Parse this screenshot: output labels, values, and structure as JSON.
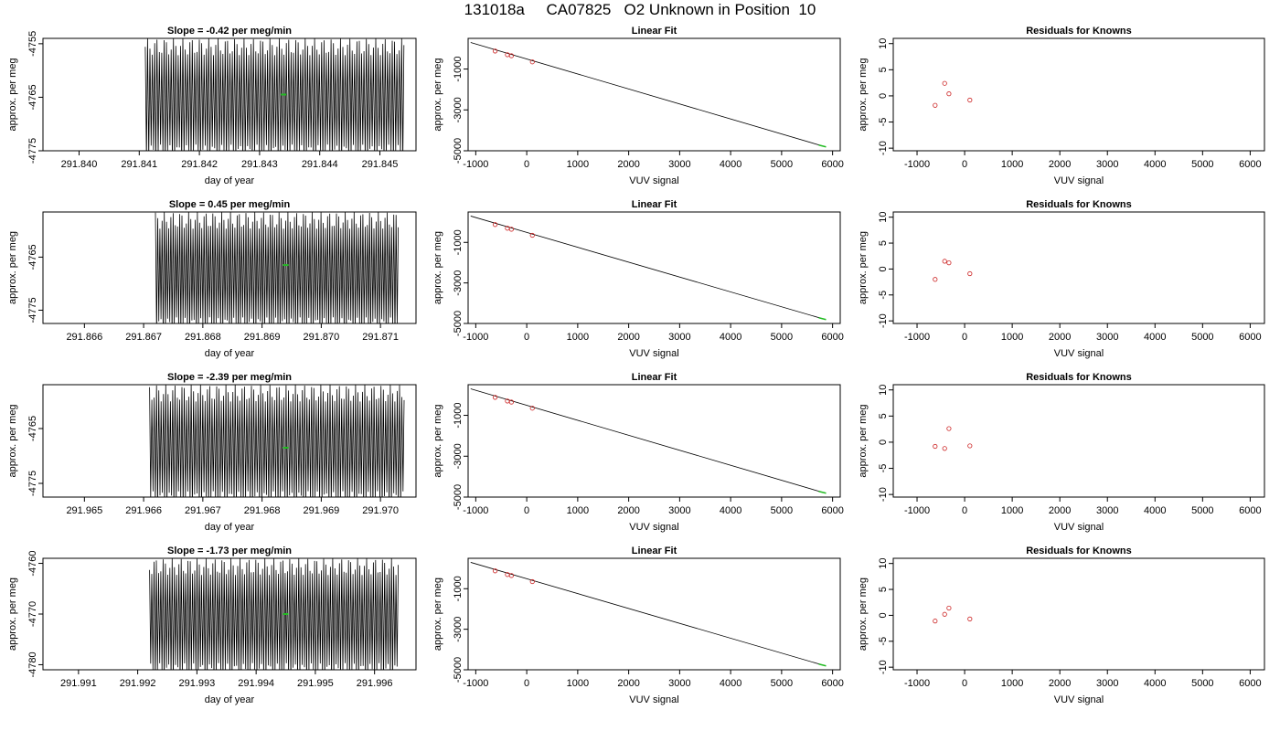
{
  "figure": {
    "title": "131018a     CA07825   O2 Unknown in Position  10"
  },
  "colors": {
    "axis": "#000000",
    "series": "#000000",
    "known_points": "#cc2222",
    "unknown": "#22bb22"
  },
  "chart_data": [
    {
      "type": "line",
      "row": 1,
      "title": "Slope =  -0.42  per meg/min",
      "xlabel": "day of year",
      "ylabel": "approx. per meg",
      "xlim": [
        291.8394,
        291.8456
      ],
      "ylim": [
        -4775,
        -4754
      ],
      "xticks": [
        291.84,
        291.841,
        291.842,
        291.843,
        291.844,
        291.845
      ],
      "xtick_labels": [
        "291.840",
        "291.841",
        "291.842",
        "291.843",
        "291.844",
        "291.845"
      ],
      "yticks": [
        -4775,
        -4765,
        -4755
      ],
      "ytick_labels": [
        "-4775",
        "-4765",
        "-4755"
      ],
      "trace": {
        "x_start": 291.8411,
        "x_end": 291.8454,
        "y_min": -4775,
        "y_max": -4754,
        "oscillations": 110
      },
      "unknown_point": {
        "x": 291.8434,
        "y": -4764.5
      }
    },
    {
      "type": "scatter",
      "row": 1,
      "title": "Linear Fit",
      "xlabel": "VUV signal",
      "ylabel": "approx. per meg",
      "xlim": [
        -1150,
        6150
      ],
      "ylim": [
        -5000,
        500
      ],
      "xticks": [
        -1000,
        0,
        1000,
        2000,
        3000,
        4000,
        5000,
        6000
      ],
      "xtick_labels": [
        "-1000",
        "0",
        "1000",
        "2000",
        "3000",
        "4000",
        "5000",
        "6000"
      ],
      "yticks": [
        -5000,
        -3000,
        -1000
      ],
      "ytick_labels": [
        "-5000",
        "-3000",
        "-1000"
      ],
      "fit_line": {
        "x": [
          -1100,
          5800
        ],
        "y": [
          300,
          -4765
        ]
      },
      "knowns": [
        {
          "x": -620,
          "y": -120
        },
        {
          "x": -380,
          "y": -300
        },
        {
          "x": -300,
          "y": -350
        },
        {
          "x": 110,
          "y": -650
        }
      ],
      "unknown_point": {
        "x": 5800,
        "y": -4765
      }
    },
    {
      "type": "scatter",
      "row": 1,
      "title": "Residuals for Knowns",
      "xlabel": "VUV signal",
      "ylabel": "approx. per meg",
      "xlim": [
        -1500,
        6300
      ],
      "ylim": [
        -10.5,
        11
      ],
      "xticks": [
        -1000,
        0,
        1000,
        2000,
        3000,
        4000,
        5000,
        6000
      ],
      "xtick_labels": [
        "-1000",
        "0",
        "1000",
        "2000",
        "3000",
        "4000",
        "5000",
        "6000"
      ],
      "yticks": [
        -10,
        -5,
        0,
        5,
        10
      ],
      "ytick_labels": [
        "-10",
        "-5",
        "0",
        "5",
        "10"
      ],
      "points": [
        {
          "x": -620,
          "y": -1.8
        },
        {
          "x": -420,
          "y": 2.4
        },
        {
          "x": -330,
          "y": 0.4
        },
        {
          "x": 110,
          "y": -0.8
        }
      ]
    },
    {
      "type": "line",
      "row": 2,
      "title": "Slope =  0.45  per meg/min",
      "xlabel": "day of year",
      "ylabel": "approx. per meg",
      "xlim": [
        291.8653,
        291.8716
      ],
      "ylim": [
        -4777.5,
        -4756.5
      ],
      "xticks": [
        291.866,
        291.867,
        291.868,
        291.869,
        291.87,
        291.871
      ],
      "xtick_labels": [
        "291.866",
        "291.867",
        "291.868",
        "291.869",
        "291.870",
        "291.871"
      ],
      "yticks": [
        -4775,
        -4765
      ],
      "ytick_labels": [
        "-4775",
        "-4765"
      ],
      "trace": {
        "x_start": 291.8672,
        "x_end": 291.8713,
        "y_min": -4777.5,
        "y_max": -4756.5,
        "oscillations": 110
      },
      "unknown_point": {
        "x": 291.8694,
        "y": -4766.5
      }
    },
    {
      "type": "scatter",
      "row": 2,
      "title": "Linear Fit",
      "xlabel": "VUV signal",
      "ylabel": "approx. per meg",
      "xlim": [
        -1150,
        6150
      ],
      "ylim": [
        -5000,
        500
      ],
      "xticks": [
        -1000,
        0,
        1000,
        2000,
        3000,
        4000,
        5000,
        6000
      ],
      "xtick_labels": [
        "-1000",
        "0",
        "1000",
        "2000",
        "3000",
        "4000",
        "5000",
        "6000"
      ],
      "yticks": [
        -5000,
        -3000,
        -1000
      ],
      "ytick_labels": [
        "-5000",
        "-3000",
        "-1000"
      ],
      "fit_line": {
        "x": [
          -1100,
          5800
        ],
        "y": [
          300,
          -4765
        ]
      },
      "knowns": [
        {
          "x": -620,
          "y": -120
        },
        {
          "x": -380,
          "y": -300
        },
        {
          "x": -300,
          "y": -350
        },
        {
          "x": 110,
          "y": -650
        }
      ],
      "unknown_point": {
        "x": 5800,
        "y": -4765
      }
    },
    {
      "type": "scatter",
      "row": 2,
      "title": "Residuals for Knowns",
      "xlabel": "VUV signal",
      "ylabel": "approx. per meg",
      "xlim": [
        -1500,
        6300
      ],
      "ylim": [
        -10.5,
        11
      ],
      "xticks": [
        -1000,
        0,
        1000,
        2000,
        3000,
        4000,
        5000,
        6000
      ],
      "xtick_labels": [
        "-1000",
        "0",
        "1000",
        "2000",
        "3000",
        "4000",
        "5000",
        "6000"
      ],
      "yticks": [
        -10,
        -5,
        0,
        5,
        10
      ],
      "ytick_labels": [
        "-10",
        "-5",
        "0",
        "5",
        "10"
      ],
      "points": [
        {
          "x": -620,
          "y": -2.0
        },
        {
          "x": -420,
          "y": 1.5
        },
        {
          "x": -330,
          "y": 1.2
        },
        {
          "x": 110,
          "y": -0.9
        }
      ]
    },
    {
      "type": "line",
      "row": 3,
      "title": "Slope =  -2.39  per meg/min",
      "xlabel": "day of year",
      "ylabel": "approx. per meg",
      "xlim": [
        291.9643,
        291.9706
      ],
      "ylim": [
        -4777.5,
        -4757
      ],
      "xticks": [
        291.965,
        291.966,
        291.967,
        291.968,
        291.969,
        291.97
      ],
      "xtick_labels": [
        "291.965",
        "291.966",
        "291.967",
        "291.968",
        "291.969",
        "291.970"
      ],
      "yticks": [
        -4775,
        -4765
      ],
      "ytick_labels": [
        "-4775",
        "-4765"
      ],
      "trace": {
        "x_start": 291.9661,
        "x_end": 291.9704,
        "y_min": -4777.5,
        "y_max": -4757,
        "oscillations": 110
      },
      "unknown_point": {
        "x": 291.9684,
        "y": -4768.5
      }
    },
    {
      "type": "scatter",
      "row": 3,
      "title": "Linear Fit",
      "xlabel": "VUV signal",
      "ylabel": "approx. per meg",
      "xlim": [
        -1150,
        6150
      ],
      "ylim": [
        -5000,
        500
      ],
      "xticks": [
        -1000,
        0,
        1000,
        2000,
        3000,
        4000,
        5000,
        6000
      ],
      "xtick_labels": [
        "-1000",
        "0",
        "1000",
        "2000",
        "3000",
        "4000",
        "5000",
        "6000"
      ],
      "yticks": [
        -5000,
        -3000,
        -1000
      ],
      "ytick_labels": [
        "-5000",
        "-3000",
        "-1000"
      ],
      "fit_line": {
        "x": [
          -1100,
          5800
        ],
        "y": [
          300,
          -4765
        ]
      },
      "knowns": [
        {
          "x": -620,
          "y": -120
        },
        {
          "x": -380,
          "y": -300
        },
        {
          "x": -300,
          "y": -350
        },
        {
          "x": 110,
          "y": -650
        }
      ],
      "unknown_point": {
        "x": 5800,
        "y": -4765
      }
    },
    {
      "type": "scatter",
      "row": 3,
      "title": "Residuals for Knowns",
      "xlabel": "VUV signal",
      "ylabel": "approx. per meg",
      "xlim": [
        -1500,
        6300
      ],
      "ylim": [
        -10.5,
        11
      ],
      "xticks": [
        -1000,
        0,
        1000,
        2000,
        3000,
        4000,
        5000,
        6000
      ],
      "xtick_labels": [
        "-1000",
        "0",
        "1000",
        "2000",
        "3000",
        "4000",
        "5000",
        "6000"
      ],
      "yticks": [
        -10,
        -5,
        0,
        5,
        10
      ],
      "ytick_labels": [
        "-10",
        "-5",
        "0",
        "5",
        "10"
      ],
      "points": [
        {
          "x": -620,
          "y": -0.8
        },
        {
          "x": -420,
          "y": -1.2
        },
        {
          "x": -330,
          "y": 2.6
        },
        {
          "x": 110,
          "y": -0.7
        }
      ]
    },
    {
      "type": "line",
      "row": 4,
      "title": "Slope =  -1.73  per meg/min",
      "xlabel": "day of year",
      "ylabel": "approx. per meg",
      "xlim": [
        291.9904,
        291.9967
      ],
      "ylim": [
        -4781,
        -4759
      ],
      "xticks": [
        291.991,
        291.992,
        291.993,
        291.994,
        291.995,
        291.996
      ],
      "xtick_labels": [
        "291.991",
        "291.992",
        "291.993",
        "291.994",
        "291.995",
        "291.996"
      ],
      "yticks": [
        -4780,
        -4770,
        -4760
      ],
      "ytick_labels": [
        "-4780",
        "-4770",
        "-4760"
      ],
      "trace": {
        "x_start": 291.9922,
        "x_end": 291.9964,
        "y_min": -4781,
        "y_max": -4759,
        "oscillations": 110
      },
      "unknown_point": {
        "x": 291.9945,
        "y": -4770
      }
    },
    {
      "type": "scatter",
      "row": 4,
      "title": "Linear Fit",
      "xlabel": "VUV signal",
      "ylabel": "approx. per meg",
      "xlim": [
        -1150,
        6150
      ],
      "ylim": [
        -5000,
        500
      ],
      "xticks": [
        -1000,
        0,
        1000,
        2000,
        3000,
        4000,
        5000,
        6000
      ],
      "xtick_labels": [
        "-1000",
        "0",
        "1000",
        "2000",
        "3000",
        "4000",
        "5000",
        "6000"
      ],
      "yticks": [
        -5000,
        -3000,
        -1000
      ],
      "ytick_labels": [
        "-5000",
        "-3000",
        "-1000"
      ],
      "fit_line": {
        "x": [
          -1100,
          5800
        ],
        "y": [
          300,
          -4765
        ]
      },
      "knowns": [
        {
          "x": -620,
          "y": -120
        },
        {
          "x": -380,
          "y": -300
        },
        {
          "x": -300,
          "y": -350
        },
        {
          "x": 110,
          "y": -650
        }
      ],
      "unknown_point": {
        "x": 5800,
        "y": -4765
      }
    },
    {
      "type": "scatter",
      "row": 4,
      "title": "Residuals for Knowns",
      "xlabel": "VUV signal",
      "ylabel": "approx. per meg",
      "xlim": [
        -1500,
        6300
      ],
      "ylim": [
        -10.5,
        11
      ],
      "xticks": [
        -1000,
        0,
        1000,
        2000,
        3000,
        4000,
        5000,
        6000
      ],
      "xtick_labels": [
        "-1000",
        "0",
        "1000",
        "2000",
        "3000",
        "4000",
        "5000",
        "6000"
      ],
      "yticks": [
        -10,
        -5,
        0,
        5,
        10
      ],
      "ytick_labels": [
        "-10",
        "-5",
        "0",
        "5",
        "10"
      ],
      "points": [
        {
          "x": -620,
          "y": -1.1
        },
        {
          "x": -420,
          "y": 0.2
        },
        {
          "x": -330,
          "y": 1.4
        },
        {
          "x": 110,
          "y": -0.7
        }
      ]
    }
  ]
}
